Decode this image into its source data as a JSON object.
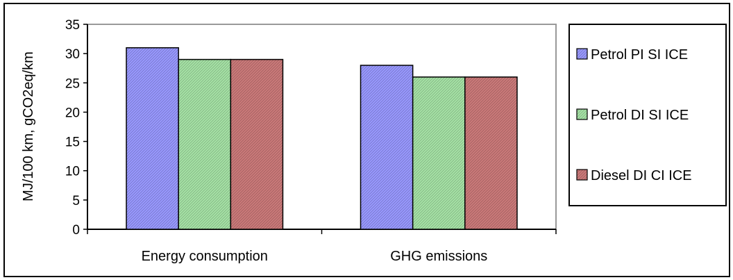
{
  "chart_data": {
    "type": "bar",
    "title": "",
    "xlabel": "",
    "ylabel": "MJ/100 km, gCO2eq/km",
    "categories": [
      "Energy consumption",
      "GHG emissions"
    ],
    "series": [
      {
        "name": "Petrol PI SI ICE",
        "values": [
          31,
          28
        ],
        "color": "#9999ff"
      },
      {
        "name": "Petrol DI SI ICE",
        "values": [
          29,
          26
        ],
        "color": "#a6e3a6"
      },
      {
        "name": "Diesel DI CI ICE",
        "values": [
          29,
          26
        ],
        "color": "#cc7a7a"
      }
    ],
    "ylim": [
      0,
      35
    ],
    "yticks": [
      0,
      5,
      10,
      15,
      20,
      25,
      30,
      35
    ],
    "grid": false,
    "plot_background": "#ffffff",
    "plot_border_color": "#999999",
    "legend_position": "right"
  }
}
